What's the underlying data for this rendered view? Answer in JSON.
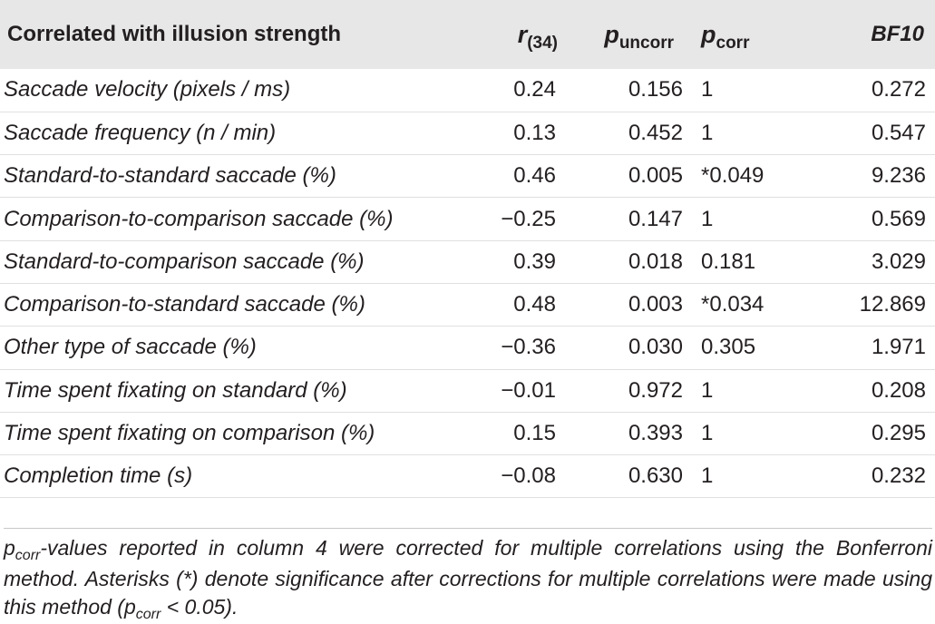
{
  "table": {
    "headers": {
      "label": "Correlated with illusion strength",
      "r_symbol": "r",
      "r_sub": "(34)",
      "p_uncorr_symbol": "p",
      "p_uncorr_sub": "uncorr",
      "p_corr_symbol": "p",
      "p_corr_sub": "corr",
      "bf": "BF10"
    },
    "rows": [
      {
        "label": "Saccade velocity (pixels / ms)",
        "r": "0.24",
        "p_uncorr": "0.156",
        "p_corr": "1",
        "bf": "0.272"
      },
      {
        "label": "Saccade frequency (n / min)",
        "r": "0.13",
        "p_uncorr": "0.452",
        "p_corr": "1",
        "bf": "0.547"
      },
      {
        "label": "Standard-to-standard saccade (%)",
        "r": "0.46",
        "p_uncorr": "0.005",
        "p_corr": "*0.049",
        "bf": "9.236"
      },
      {
        "label": "Comparison-to-comparison saccade (%)",
        "r": "−0.25",
        "p_uncorr": "0.147",
        "p_corr": "1",
        "bf": "0.569"
      },
      {
        "label": "Standard-to-comparison saccade (%)",
        "r": "0.39",
        "p_uncorr": "0.018",
        "p_corr": "0.181",
        "bf": "3.029"
      },
      {
        "label": "Comparison-to-standard saccade (%)",
        "r": "0.48",
        "p_uncorr": "0.003",
        "p_corr": "*0.034",
        "bf": "12.869"
      },
      {
        "label": "Other type of saccade (%)",
        "r": "−0.36",
        "p_uncorr": "0.030",
        "p_corr": "0.305",
        "bf": "1.971"
      },
      {
        "label": "Time spent fixating on standard (%)",
        "r": "−0.01",
        "p_uncorr": "0.972",
        "p_corr": "1",
        "bf": "0.208"
      },
      {
        "label": "Time spent fixating on comparison (%)",
        "r": "0.15",
        "p_uncorr": "0.393",
        "p_corr": "1",
        "bf": "0.295"
      },
      {
        "label": "Completion time (s)",
        "r": "−0.08",
        "p_uncorr": "0.630",
        "p_corr": "1",
        "bf": "0.232"
      }
    ]
  },
  "footnote": {
    "p1": "p",
    "s1": "corr",
    "t1": "-values reported in column 4 were corrected for multiple correlations using the Bonferroni method. Asterisks (*) denote significance after corrections for multiple correlations were made using this method (",
    "p2": "p",
    "s2": "corr",
    "t2": " < 0.05)."
  }
}
